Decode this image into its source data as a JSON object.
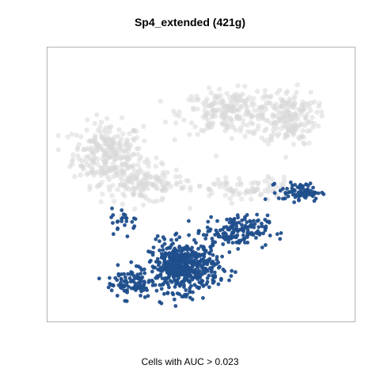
{
  "chart_data": {
    "type": "scatter",
    "title": "Sp4_extended (421g)",
    "xlabel": "Cells with AUC > 0.023",
    "ylabel": "",
    "grid": false,
    "legend": "none",
    "colors": {
      "background_cells": "#d9d9d9",
      "highlighted_cells": "#1f4e8c",
      "frame": "#b3b3b3"
    },
    "series": [
      {
        "role": "background_cells",
        "clusters": [
          {
            "center": [
              0.18,
              0.62
            ],
            "spread": [
              0.1,
              0.1
            ],
            "n": 260
          },
          {
            "center": [
              0.3,
              0.5
            ],
            "spread": [
              0.12,
              0.06
            ],
            "n": 140
          },
          {
            "center": [
              0.6,
              0.78
            ],
            "spread": [
              0.14,
              0.07
            ],
            "n": 220
          },
          {
            "center": [
              0.8,
              0.76
            ],
            "spread": [
              0.08,
              0.09
            ],
            "n": 180
          },
          {
            "center": [
              0.65,
              0.48
            ],
            "spread": [
              0.16,
              0.04
            ],
            "n": 90
          }
        ]
      },
      {
        "role": "highlighted_cells",
        "clusters": [
          {
            "center": [
              0.44,
              0.18
            ],
            "spread": [
              0.1,
              0.08
            ],
            "n": 520
          },
          {
            "center": [
              0.62,
              0.32
            ],
            "spread": [
              0.09,
              0.05
            ],
            "n": 160
          },
          {
            "center": [
              0.84,
              0.47
            ],
            "spread": [
              0.06,
              0.03
            ],
            "n": 80
          },
          {
            "center": [
              0.26,
              0.12
            ],
            "spread": [
              0.07,
              0.05
            ],
            "n": 90
          },
          {
            "center": [
              0.24,
              0.36
            ],
            "spread": [
              0.04,
              0.04
            ],
            "n": 25
          }
        ]
      }
    ]
  }
}
